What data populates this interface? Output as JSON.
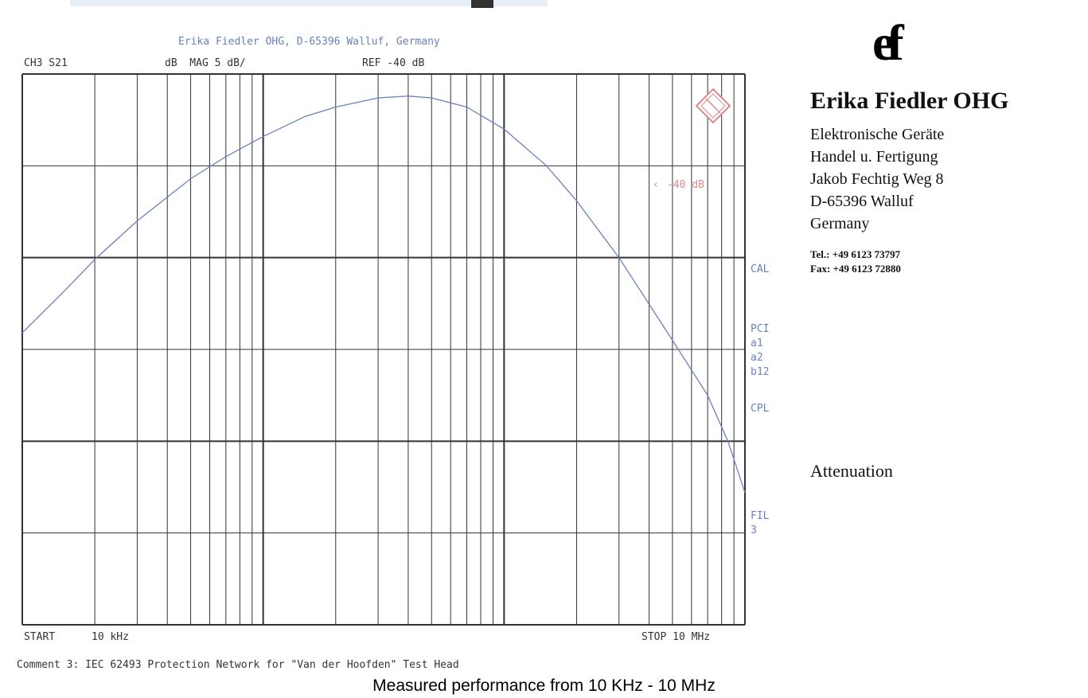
{
  "header": {
    "title": "Erika Fiedler OHG, D-65396 Walluf, Germany",
    "channel": "CH3 S21",
    "format": "dB  MAG 5 dB/",
    "ref": "REF -40 dB"
  },
  "marker_label": "-40 dB",
  "side_labels": [
    "CAL",
    "PCI",
    "a1",
    "a2",
    "b12",
    "CPL",
    "FIL",
    "3"
  ],
  "footer": {
    "start_label": "START",
    "start_value": "10 kHz",
    "stop": "STOP 10 MHz",
    "comment": "Comment 3: IEC 62493 Protection Network for \"Van der Hoofden\" Test Head"
  },
  "company": {
    "logo": "ef",
    "name": "Erika Fiedler OHG",
    "lines": [
      "Elektronische Geräte",
      "Handel u. Fertigung",
      "Jakob Fechtig Weg 8",
      "D-65396 Walluf",
      "Germany"
    ],
    "tel": "Tel.: +49 6123 73797",
    "fax": "Fax: +49 6123 72880",
    "doc_title": "Attenuation"
  },
  "caption": "Measured performance from 10 KHz - 10 MHz",
  "colors": {
    "trace": "#6a82bb",
    "grid": "#333333",
    "marker": "#d98a8a"
  },
  "chart_data": {
    "type": "line",
    "x_scale": "log",
    "x_unit": "Hz",
    "xlim": [
      10000,
      10000000
    ],
    "y_unit": "dB",
    "ylim": [
      -50,
      -80
    ],
    "ref_db": -40,
    "scale_db_per_div": 5,
    "grid": true,
    "series": [
      {
        "x": [
          10000,
          15000,
          20000,
          30000,
          50000,
          70000,
          100000,
          150000,
          200000,
          300000,
          400000,
          500000,
          700000,
          1000000,
          1500000,
          2000000,
          3000000,
          5000000,
          7000000,
          8500000,
          10000000
        ],
        "y": [
          -64.1,
          -61.8,
          -60.1,
          -58.0,
          -55.7,
          -54.5,
          -53.4,
          -52.3,
          -51.8,
          -51.3,
          -51.2,
          -51.3,
          -51.8,
          -53.0,
          -55.0,
          -56.9,
          -60.0,
          -64.5,
          -67.5,
          -70.0,
          -72.8
        ]
      }
    ]
  }
}
